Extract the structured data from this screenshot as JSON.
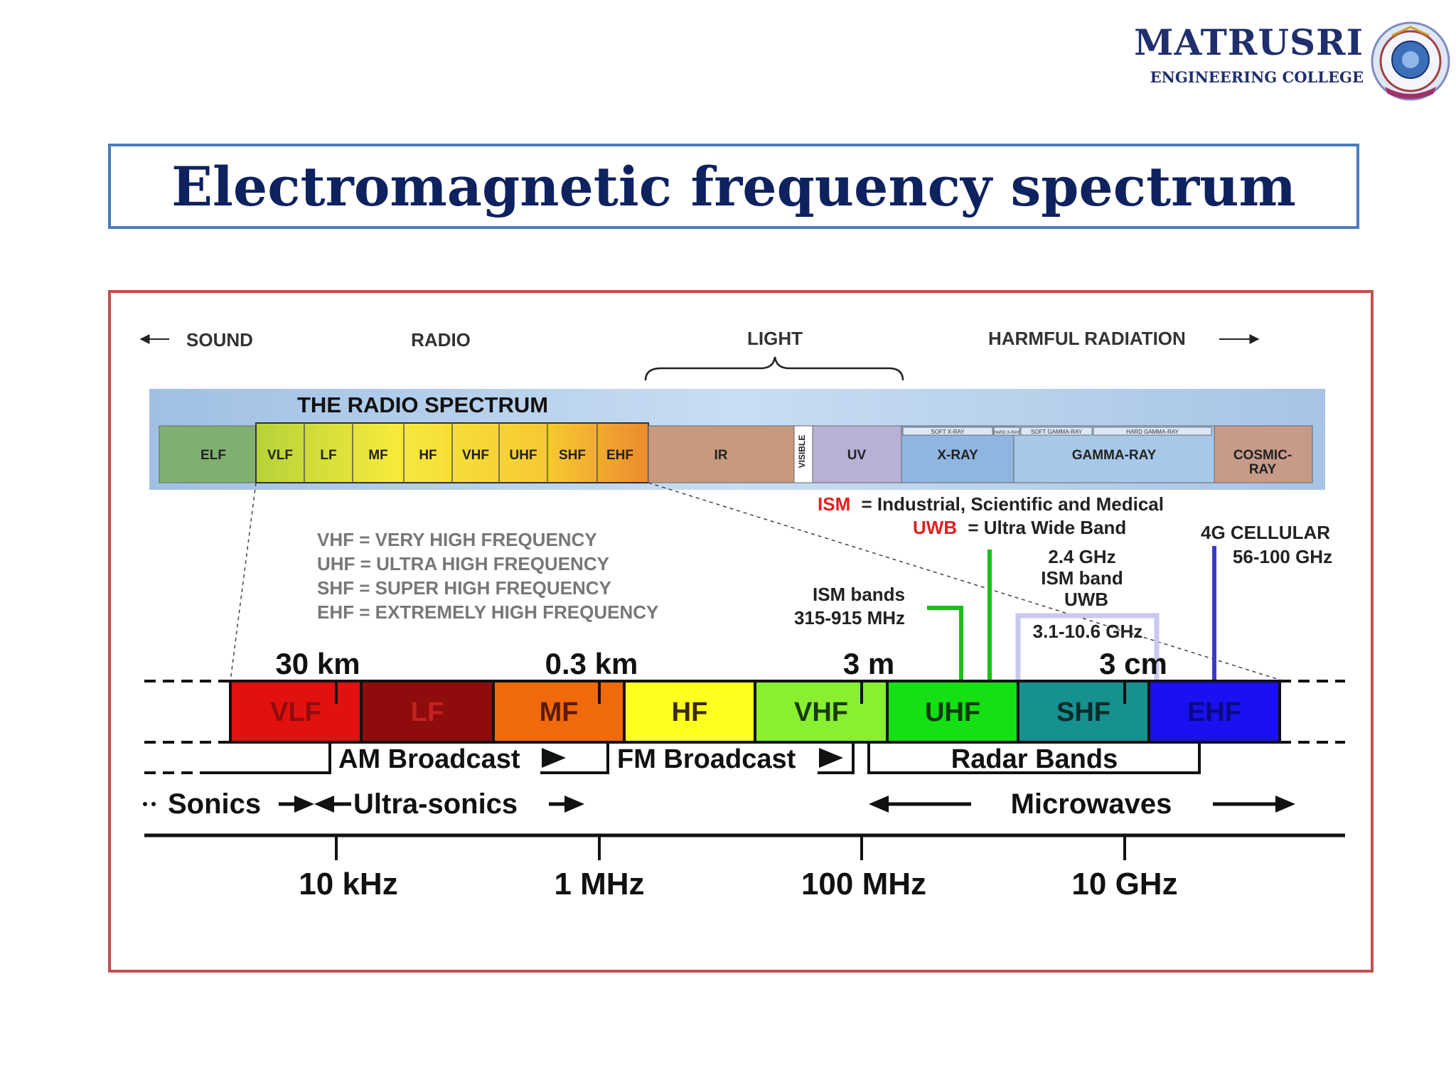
{
  "logo": {
    "name": "MATRUSRI",
    "subtitle": "ENGINEERING COLLEGE"
  },
  "title": "Electromagnetic frequency spectrum",
  "diagram": {
    "categories": {
      "sound": "SOUND",
      "radio": "RADIO",
      "light": "LIGHT",
      "harmful": "HARMFUL RADIATION"
    },
    "radio_spectrum_title": "THE RADIO SPECTRUM",
    "top_bands": {
      "elf": "ELF",
      "vlf": "VLF",
      "lf": "LF",
      "mf": "MF",
      "hf": "HF",
      "vhf": "VHF",
      "uhf": "UHF",
      "shf": "SHF",
      "ehf": "EHF",
      "ir": "IR",
      "visible": "VISIBLE",
      "uv": "UV",
      "xray": "X-RAY",
      "gamma": "GAMMA-RAY",
      "cosmic_1": "COSMIC-",
      "cosmic_2": "RAY"
    },
    "sub_bands": {
      "soft_xray": "SOFT X-RAY",
      "hard_xray": "HARD X-RAY",
      "soft_gamma": "SOFT GAMMA-RAY",
      "hard_gamma": "HARD GAMMA-RAY"
    },
    "legend": {
      "ism_abbr": "ISM",
      "ism_text": "= Industrial, Scientific and Medical",
      "uwb_abbr": "UWB",
      "uwb_text": "= Ultra Wide Band"
    },
    "definitions": [
      "VHF = VERY HIGH FREQUENCY",
      "UHF = ULTRA HIGH FREQUENCY",
      "SHF = SUPER HIGH FREQUENCY",
      "EHF = EXTREMELY HIGH FREQUENCY"
    ],
    "callouts": {
      "ism_bands_1": "ISM bands",
      "ism_bands_2": "315-915 MHz",
      "ism24_1": "2.4 GHz",
      "ism24_2": "ISM band",
      "ism24_3": "UWB",
      "uwb_range": "3.1-10.6 GHz",
      "cell_1": "4G CELLULAR",
      "cell_2": "56-100 GHz"
    },
    "wavelengths": [
      "30 km",
      "0.3 km",
      "3 m",
      "3 cm"
    ],
    "bands": [
      "VLF",
      "LF",
      "MF",
      "HF",
      "VHF",
      "UHF",
      "SHF",
      "EHF"
    ],
    "broadcast": {
      "am": "AM Broadcast",
      "fm": "FM Broadcast",
      "radar": "Radar Bands"
    },
    "acoustic": {
      "sonics": "Sonics",
      "ultrasonics": "Ultra-sonics",
      "microwaves": "Microwaves"
    },
    "frequencies": [
      "10 kHz",
      "1 MHz",
      "100 MHz",
      "10 GHz"
    ],
    "colors": {
      "vlf": "#e31010",
      "lf": "#8e0c0c",
      "mf": "#f06a0c",
      "hf": "#ffff20",
      "vhf": "#88f030",
      "uhf": "#14e014",
      "shf": "#179090",
      "ehf": "#1a10f0",
      "ism_green": "#19c019",
      "uwb_box": "#c8c8f0",
      "cell_blue": "#3a3ac8",
      "abbr_red": "#e02020"
    }
  }
}
